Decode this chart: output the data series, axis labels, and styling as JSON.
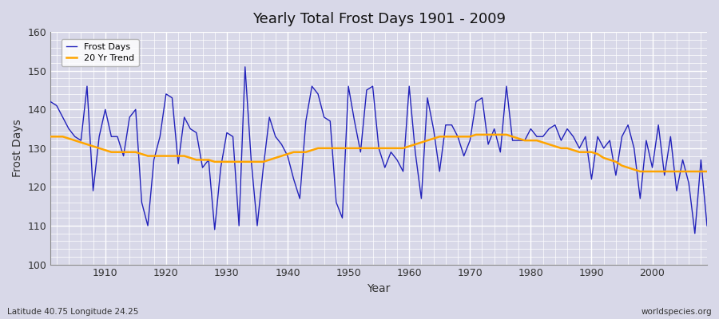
{
  "title": "Yearly Total Frost Days 1901 - 2009",
  "xlabel": "Year",
  "ylabel": "Frost Days",
  "footnote_left": "Latitude 40.75 Longitude 24.25",
  "footnote_right": "worldspecies.org",
  "xlim": [
    1901,
    2009
  ],
  "ylim": [
    100,
    160
  ],
  "yticks": [
    100,
    110,
    120,
    130,
    140,
    150,
    160
  ],
  "xticks": [
    1910,
    1920,
    1930,
    1940,
    1950,
    1960,
    1970,
    1980,
    1990,
    2000
  ],
  "bg_color": "#d8d8e8",
  "plot_bg_color": "#d8d8e8",
  "line_color": "#2222bb",
  "trend_color": "#ffa500",
  "years": [
    1901,
    1902,
    1903,
    1904,
    1905,
    1906,
    1907,
    1908,
    1909,
    1910,
    1911,
    1912,
    1913,
    1914,
    1915,
    1916,
    1917,
    1918,
    1919,
    1920,
    1921,
    1922,
    1923,
    1924,
    1925,
    1926,
    1927,
    1928,
    1929,
    1930,
    1931,
    1932,
    1933,
    1934,
    1935,
    1936,
    1937,
    1938,
    1939,
    1940,
    1941,
    1942,
    1943,
    1944,
    1945,
    1946,
    1947,
    1948,
    1949,
    1950,
    1951,
    1952,
    1953,
    1954,
    1955,
    1956,
    1957,
    1958,
    1959,
    1960,
    1961,
    1962,
    1963,
    1964,
    1965,
    1966,
    1967,
    1968,
    1969,
    1970,
    1971,
    1972,
    1973,
    1974,
    1975,
    1976,
    1977,
    1978,
    1979,
    1980,
    1981,
    1982,
    1983,
    1984,
    1985,
    1986,
    1987,
    1988,
    1989,
    1990,
    1991,
    1992,
    1993,
    1994,
    1995,
    1996,
    1997,
    1998,
    1999,
    2000,
    2001,
    2002,
    2003,
    2004,
    2005,
    2006,
    2007,
    2008,
    2009
  ],
  "frost_days": [
    142,
    141,
    138,
    135,
    133,
    132,
    146,
    119,
    133,
    140,
    133,
    133,
    128,
    138,
    140,
    116,
    110,
    127,
    133,
    144,
    143,
    126,
    138,
    135,
    134,
    125,
    127,
    109,
    125,
    134,
    133,
    110,
    151,
    127,
    110,
    125,
    138,
    133,
    131,
    128,
    122,
    117,
    137,
    146,
    144,
    138,
    137,
    116,
    112,
    146,
    137,
    129,
    145,
    146,
    130,
    125,
    129,
    127,
    124,
    146,
    129,
    117,
    143,
    135,
    124,
    136,
    136,
    133,
    128,
    132,
    142,
    143,
    131,
    135,
    129,
    146,
    132,
    132,
    132,
    135,
    133,
    133,
    135,
    136,
    132,
    135,
    133,
    130,
    133,
    122,
    133,
    130,
    132,
    123,
    133,
    136,
    130,
    117,
    132,
    125,
    136,
    123,
    133,
    119,
    127,
    121,
    108,
    127,
    110
  ],
  "trend": [
    133.0,
    133.0,
    133.0,
    132.5,
    132.0,
    131.5,
    131.0,
    130.5,
    130.0,
    129.5,
    129.0,
    129.0,
    129.0,
    129.0,
    129.0,
    128.5,
    128.0,
    128.0,
    128.0,
    128.0,
    128.0,
    128.0,
    128.0,
    127.5,
    127.0,
    127.0,
    127.0,
    126.5,
    126.5,
    126.5,
    126.5,
    126.5,
    126.5,
    126.5,
    126.5,
    126.5,
    127.0,
    127.5,
    128.0,
    128.5,
    129.0,
    129.0,
    129.0,
    129.5,
    130.0,
    130.0,
    130.0,
    130.0,
    130.0,
    130.0,
    130.0,
    130.0,
    130.0,
    130.0,
    130.0,
    130.0,
    130.0,
    130.0,
    130.0,
    130.5,
    131.0,
    131.5,
    132.0,
    132.5,
    133.0,
    133.0,
    133.0,
    133.0,
    133.0,
    133.0,
    133.5,
    133.5,
    133.5,
    133.5,
    133.5,
    133.5,
    133.0,
    132.5,
    132.0,
    132.0,
    132.0,
    131.5,
    131.0,
    130.5,
    130.0,
    130.0,
    129.5,
    129.0,
    129.0,
    129.0,
    128.5,
    127.5,
    127.0,
    126.5,
    125.5,
    125.0,
    124.5,
    124.0,
    124.0,
    124.0,
    124.0,
    124.0,
    124.0,
    124.0,
    124.0,
    124.0,
    124.0,
    124.0,
    124.0
  ]
}
